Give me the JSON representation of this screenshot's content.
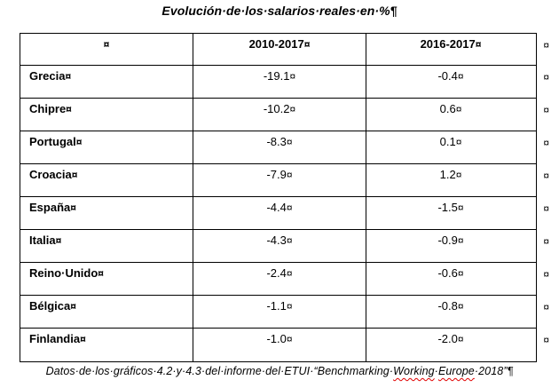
{
  "page": {
    "title": "Evolución·de·los·salarios·reales·en·%",
    "title_pilcrow": "¶"
  },
  "table": {
    "markers": {
      "cell_end": "¤",
      "row_end": "¤"
    },
    "header": {
      "empty": "",
      "period1": "2010-2017",
      "period2": "2016-2017"
    },
    "rows": [
      {
        "country": "Grecia",
        "v2010_2017": "-19.1",
        "v2016_2017": "-0.4"
      },
      {
        "country": "Chipre",
        "v2010_2017": "-10.2",
        "v2016_2017": "0.6"
      },
      {
        "country": "Portugal",
        "v2010_2017": "-8.3",
        "v2016_2017": "0.1"
      },
      {
        "country": "Croacia",
        "v2010_2017": "-7.9",
        "v2016_2017": "1.2"
      },
      {
        "country": "España",
        "v2010_2017": "-4.4",
        "v2016_2017": "-1.5"
      },
      {
        "country": "Italia",
        "v2010_2017": "-4.3",
        "v2016_2017": "-0.9"
      },
      {
        "country": "Reino·Unido",
        "v2010_2017": "-2.4",
        "v2016_2017": "-0.6"
      },
      {
        "country": "Bélgica",
        "v2010_2017": "-1.1",
        "v2016_2017": "-0.8"
      },
      {
        "country": "Finlandia",
        "v2010_2017": "-1.0",
        "v2016_2017": "-2.0"
      }
    ]
  },
  "footer": {
    "pre": "Datos·de·los·gráficos·4.2·y·4.3·del·informe·del·ETUI·“Benchmarking·",
    "misspelled_word_1": "Working",
    "sep": "·",
    "misspelled_word_2": "Europe",
    "post": "·2018”",
    "pilcrow": "¶"
  },
  "colors": {
    "text": "#000000",
    "border": "#000000",
    "background": "#ffffff",
    "spellcheck_underline": "#e00000"
  }
}
